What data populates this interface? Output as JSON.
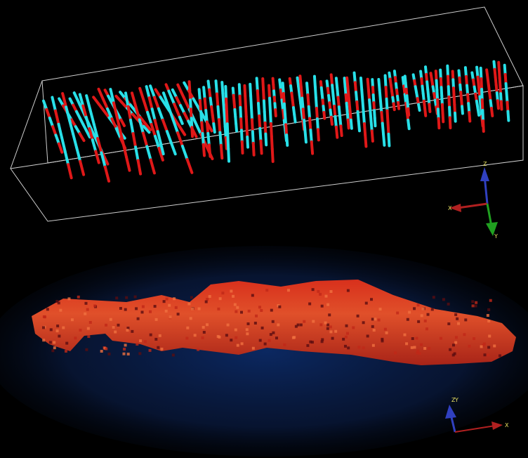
{
  "top_view": {
    "axes": {
      "z": "Z",
      "x": "X",
      "y": "Y"
    }
  },
  "bottom_view": {
    "axes": {
      "z": "Z",
      "y": "Y",
      "x": "X"
    }
  }
}
